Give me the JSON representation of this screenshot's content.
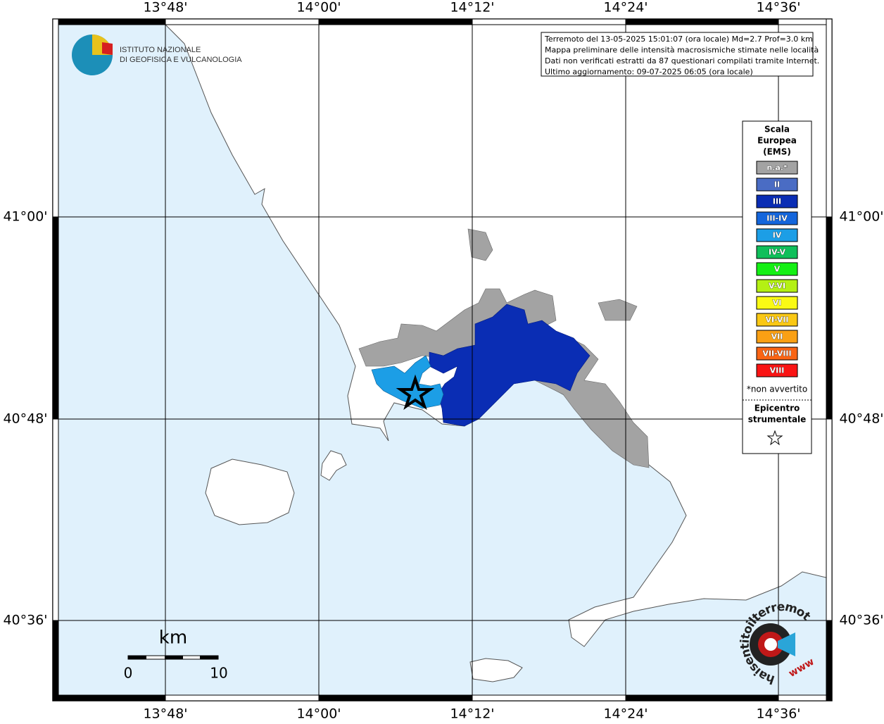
{
  "graticule": {
    "lon_labels": [
      "13°48'",
      "14°00'",
      "14°12'",
      "14°24'",
      "14°36'"
    ],
    "lat_labels": [
      "41°00'",
      "40°48'",
      "40°36'"
    ]
  },
  "logo": {
    "line1": "ISTITUTO NAZIONALE",
    "line2": "DI GEOFISICA E VULCANOLOGIA"
  },
  "info_box": {
    "lines": [
      "Terremoto del 13-05-2025 15:01:07 (ora locale) Md=2.7 Prof=3.0 km",
      "Mappa preliminare delle intensità macrosismiche stimate nelle località",
      "Dati non verificati estratti da 87 questionari compilati tramite Internet.",
      "Ultimo aggiornamento: 09-07-2025 06:05 (ora locale)"
    ]
  },
  "legend": {
    "title_lines": [
      "Scala",
      "Europea",
      "(EMS)"
    ],
    "items": [
      {
        "label": "n.a.*",
        "color": "#a3a3a3"
      },
      {
        "label": "II",
        "color": "#4a6cc4"
      },
      {
        "label": "III",
        "color": "#0a2db4"
      },
      {
        "label": "III-IV",
        "color": "#1466dc"
      },
      {
        "label": "IV",
        "color": "#1c9ee6"
      },
      {
        "label": "IV-V",
        "color": "#0fbf5a"
      },
      {
        "label": "V",
        "color": "#14f014"
      },
      {
        "label": "V-VI",
        "color": "#b4f014"
      },
      {
        "label": "VI",
        "color": "#fafa14"
      },
      {
        "label": "VI-VII",
        "color": "#fac814"
      },
      {
        "label": "VII",
        "color": "#faa014"
      },
      {
        "label": "VII-VIII",
        "color": "#fa6414"
      },
      {
        "label": "VIII",
        "color": "#fa1414"
      }
    ],
    "footnote": "*non avvertito",
    "epicenter_lines": [
      "Epicentro",
      "strumentale"
    ]
  },
  "scale_bar": {
    "unit": "km",
    "start": "0",
    "end": "10"
  },
  "badge": {
    "url": "haisentitoilterremoto.it",
    "www": "www"
  }
}
